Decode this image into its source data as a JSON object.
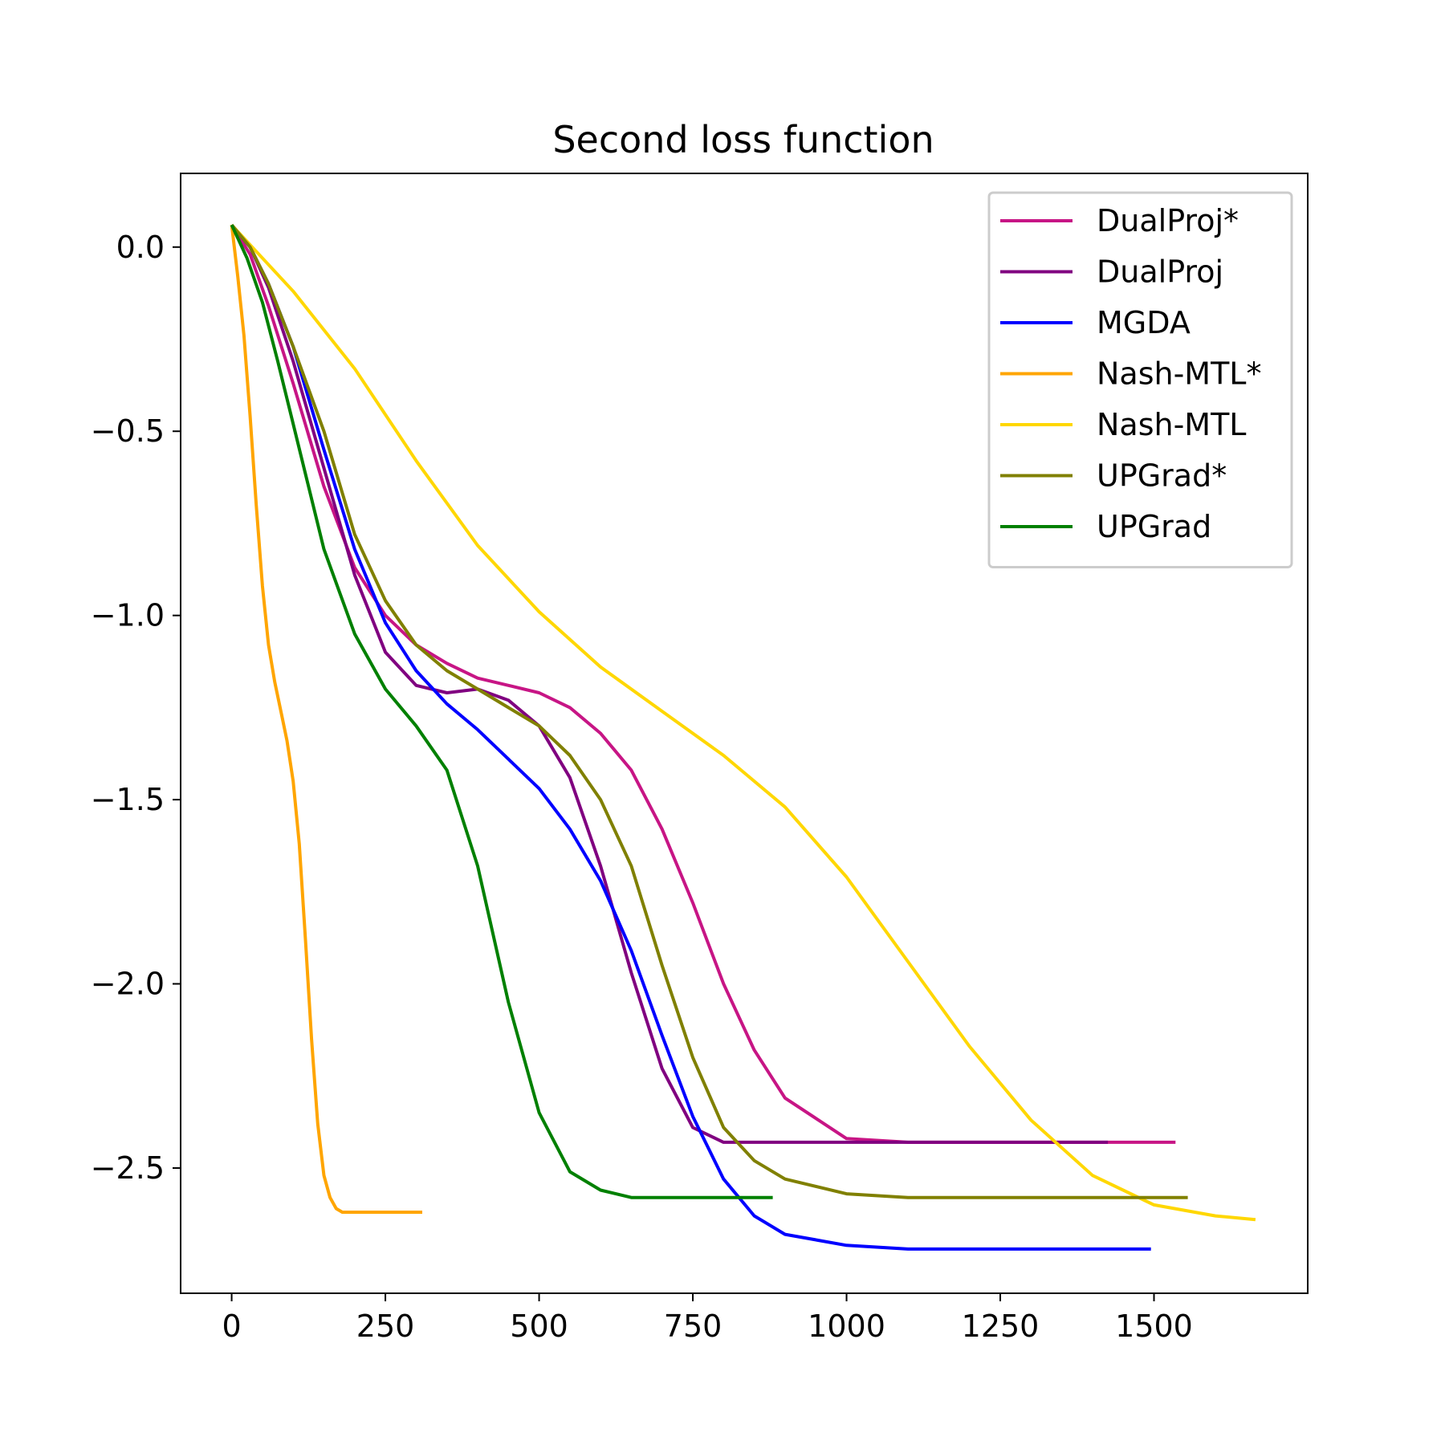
{
  "chart_data": {
    "type": "line",
    "title": "Second loss function",
    "xlabel": "",
    "ylabel": "",
    "xlim": [
      -83,
      1750
    ],
    "ylim": [
      -2.84,
      0.2
    ],
    "xticks": [
      0,
      250,
      500,
      750,
      1000,
      1250,
      1500
    ],
    "xtick_labels": [
      "0",
      "250",
      "500",
      "750",
      "1000",
      "1250",
      "1500"
    ],
    "yticks": [
      0.0,
      -0.5,
      -1.0,
      -1.5,
      -2.0,
      -2.5
    ],
    "ytick_labels": [
      "0.0",
      "−0.5",
      "−1.0",
      "−1.5",
      "−2.0",
      "−2.5"
    ],
    "grid": false,
    "legend_position": "top-right",
    "series": [
      {
        "name": "DualProj*",
        "color": "#c71585",
        "x": [
          0,
          30,
          60,
          100,
          150,
          200,
          250,
          300,
          350,
          400,
          450,
          500,
          550,
          600,
          650,
          700,
          750,
          800,
          850,
          900,
          1000,
          1100,
          1200,
          1300,
          1400,
          1500,
          1535
        ],
        "y": [
          0.06,
          -0.02,
          -0.16,
          -0.37,
          -0.65,
          -0.87,
          -1.0,
          -1.08,
          -1.13,
          -1.17,
          -1.19,
          -1.21,
          -1.25,
          -1.32,
          -1.42,
          -1.58,
          -1.78,
          -2.0,
          -2.18,
          -2.31,
          -2.42,
          -2.43,
          -2.43,
          -2.43,
          -2.43,
          -2.43,
          -2.43
        ]
      },
      {
        "name": "DualProj",
        "color": "#800080",
        "x": [
          0,
          30,
          60,
          100,
          150,
          200,
          250,
          300,
          350,
          400,
          450,
          500,
          550,
          600,
          650,
          700,
          750,
          800,
          850,
          900,
          1000,
          1100,
          1200,
          1300,
          1400,
          1425
        ],
        "y": [
          0.06,
          0.0,
          -0.11,
          -0.31,
          -0.6,
          -0.89,
          -1.1,
          -1.19,
          -1.21,
          -1.2,
          -1.23,
          -1.3,
          -1.44,
          -1.68,
          -1.97,
          -2.23,
          -2.39,
          -2.43,
          -2.43,
          -2.43,
          -2.43,
          -2.43,
          -2.43,
          -2.43,
          -2.43,
          -2.43
        ]
      },
      {
        "name": "MGDA",
        "color": "#0000ff",
        "x": [
          0,
          30,
          60,
          100,
          150,
          200,
          250,
          300,
          350,
          400,
          450,
          500,
          550,
          600,
          650,
          700,
          750,
          800,
          850,
          900,
          1000,
          1100,
          1200,
          1300,
          1400,
          1495
        ],
        "y": [
          0.06,
          0.0,
          -0.1,
          -0.27,
          -0.55,
          -0.82,
          -1.02,
          -1.15,
          -1.24,
          -1.31,
          -1.39,
          -1.47,
          -1.58,
          -1.72,
          -1.91,
          -2.14,
          -2.36,
          -2.53,
          -2.63,
          -2.68,
          -2.71,
          -2.72,
          -2.72,
          -2.72,
          -2.72,
          -2.72
        ]
      },
      {
        "name": "Nash-MTL*",
        "color": "#ffa500",
        "x": [
          0,
          10,
          20,
          30,
          40,
          50,
          60,
          70,
          80,
          90,
          100,
          110,
          120,
          130,
          140,
          150,
          160,
          170,
          180,
          190,
          200,
          220,
          250,
          280,
          310
        ],
        "y": [
          0.06,
          -0.08,
          -0.24,
          -0.46,
          -0.7,
          -0.92,
          -1.08,
          -1.18,
          -1.26,
          -1.34,
          -1.45,
          -1.62,
          -1.88,
          -2.15,
          -2.38,
          -2.52,
          -2.58,
          -2.61,
          -2.62,
          -2.62,
          -2.62,
          -2.62,
          -2.62,
          -2.62,
          -2.62
        ]
      },
      {
        "name": "Nash-MTL",
        "color": "#ffd700",
        "x": [
          0,
          100,
          200,
          300,
          400,
          500,
          600,
          700,
          800,
          900,
          1000,
          1100,
          1200,
          1300,
          1400,
          1500,
          1600,
          1665
        ],
        "y": [
          0.06,
          -0.12,
          -0.33,
          -0.58,
          -0.81,
          -0.99,
          -1.14,
          -1.26,
          -1.38,
          -1.52,
          -1.71,
          -1.94,
          -2.17,
          -2.37,
          -2.52,
          -2.6,
          -2.63,
          -2.64
        ]
      },
      {
        "name": "UPGrad*",
        "color": "#808000",
        "x": [
          0,
          30,
          60,
          100,
          150,
          200,
          250,
          300,
          350,
          400,
          450,
          500,
          550,
          600,
          650,
          700,
          750,
          800,
          850,
          900,
          1000,
          1100,
          1200,
          1300,
          1400,
          1500,
          1555
        ],
        "y": [
          0.06,
          0.0,
          -0.1,
          -0.27,
          -0.5,
          -0.78,
          -0.96,
          -1.08,
          -1.15,
          -1.2,
          -1.25,
          -1.3,
          -1.38,
          -1.5,
          -1.68,
          -1.95,
          -2.2,
          -2.39,
          -2.48,
          -2.53,
          -2.57,
          -2.58,
          -2.58,
          -2.58,
          -2.58,
          -2.58,
          -2.58
        ]
      },
      {
        "name": "UPGrad",
        "color": "#008000",
        "x": [
          0,
          25,
          50,
          75,
          100,
          150,
          200,
          250,
          300,
          350,
          400,
          450,
          500,
          550,
          600,
          650,
          700,
          750,
          800,
          880
        ],
        "y": [
          0.06,
          -0.03,
          -0.15,
          -0.31,
          -0.48,
          -0.82,
          -1.05,
          -1.2,
          -1.3,
          -1.42,
          -1.68,
          -2.05,
          -2.35,
          -2.51,
          -2.56,
          -2.58,
          -2.58,
          -2.58,
          -2.58,
          -2.58
        ]
      }
    ]
  }
}
